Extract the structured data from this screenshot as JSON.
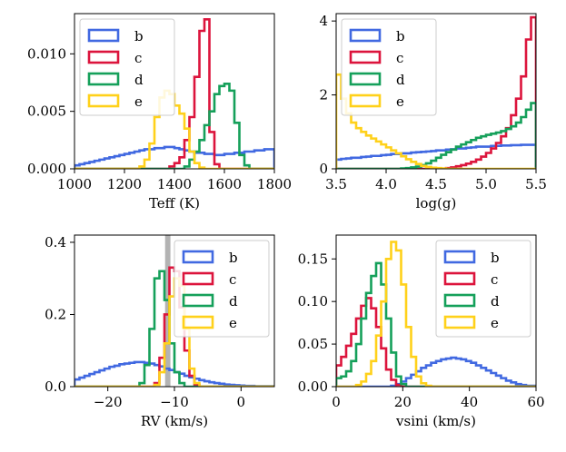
{
  "chart_data": [
    {
      "type": "histogram",
      "xlabel": "Teff (K)",
      "ylabel": "",
      "xlim": [
        1000,
        1800
      ],
      "ylim": [
        0,
        0.0135
      ],
      "xticks": [
        "1000",
        "1200",
        "1400",
        "1600",
        "1800"
      ],
      "yticks": [
        "0.000",
        "0.005",
        "0.010"
      ],
      "legend_position": "top-left",
      "bin_start": 1000,
      "bin_width": 20,
      "series": [
        {
          "name": "b",
          "color": "#4169E1",
          "values": [
            0.0003,
            0.0004,
            0.0005,
            0.0006,
            0.0007,
            0.0008,
            0.0009,
            0.001,
            0.0011,
            0.0012,
            0.0013,
            0.0014,
            0.0015,
            0.0016,
            0.0017,
            0.0017,
            0.0018,
            0.0018,
            0.0019,
            0.0019,
            0.0018,
            0.0017,
            0.0016,
            0.0015,
            0.0014,
            0.0014,
            0.0013,
            0.0013,
            0.0012,
            0.0012,
            0.0013,
            0.0013,
            0.0014,
            0.0014,
            0.0015,
            0.0015,
            0.0016,
            0.0016,
            0.0017,
            0.0017
          ]
        },
        {
          "name": "c",
          "color": "#DC143C",
          "values": [
            0,
            0,
            0,
            0,
            0,
            0,
            0,
            0,
            0,
            0,
            0,
            0,
            0,
            0,
            0,
            0,
            0,
            0,
            0,
            0.0002,
            0.0005,
            0.001,
            0.0025,
            0.0045,
            0.008,
            0.012,
            0.013,
            0.0032,
            0.0004,
            0,
            0,
            0,
            0,
            0,
            0,
            0,
            0,
            0,
            0,
            0
          ]
        },
        {
          "name": "d",
          "color": "#15A05A",
          "values": [
            0,
            0,
            0,
            0,
            0,
            0,
            0,
            0,
            0,
            0,
            0,
            0,
            0,
            0,
            0,
            0,
            0,
            0,
            0,
            0,
            0,
            0,
            0.0002,
            0.0008,
            0.0015,
            0.0025,
            0.0038,
            0.005,
            0.0065,
            0.0072,
            0.0074,
            0.0068,
            0.004,
            0.0012,
            0.0003,
            0,
            0,
            0,
            0,
            0
          ]
        },
        {
          "name": "e",
          "color": "#FFD11A",
          "values": [
            0,
            0,
            0,
            0,
            0,
            0,
            0,
            0,
            0,
            0,
            0,
            0,
            0,
            0.0002,
            0.0008,
            0.0022,
            0.0045,
            0.0062,
            0.0068,
            0.0065,
            0.0055,
            0.0048,
            0.0035,
            0.0015,
            0.0005,
            0.0001,
            0,
            0,
            0,
            0,
            0,
            0,
            0,
            0,
            0,
            0,
            0,
            0,
            0,
            0
          ]
        }
      ]
    },
    {
      "type": "histogram",
      "xlabel": "log(g)",
      "ylabel": "",
      "xlim": [
        3.5,
        5.5
      ],
      "ylim": [
        0,
        4.2
      ],
      "xticks": [
        "3.5",
        "4.0",
        "4.5",
        "5.0",
        "5.5"
      ],
      "yticks": [
        "0",
        "2",
        "4"
      ],
      "legend_position": "top-left",
      "bin_start": 3.5,
      "bin_width": 0.05,
      "series": [
        {
          "name": "b",
          "color": "#4169E1",
          "values": [
            0.25,
            0.27,
            0.28,
            0.3,
            0.3,
            0.32,
            0.33,
            0.35,
            0.35,
            0.37,
            0.38,
            0.4,
            0.4,
            0.42,
            0.42,
            0.44,
            0.45,
            0.46,
            0.47,
            0.48,
            0.5,
            0.5,
            0.52,
            0.53,
            0.55,
            0.55,
            0.57,
            0.58,
            0.6,
            0.6,
            0.6,
            0.62,
            0.62,
            0.63,
            0.63,
            0.64,
            0.64,
            0.65,
            0.65,
            0.65
          ]
        },
        {
          "name": "c",
          "color": "#DC143C",
          "values": [
            0,
            0,
            0,
            0,
            0,
            0,
            0,
            0,
            0,
            0,
            0,
            0,
            0,
            0,
            0,
            0,
            0,
            0,
            0,
            0,
            0,
            0,
            0.02,
            0.04,
            0.07,
            0.1,
            0.14,
            0.19,
            0.25,
            0.33,
            0.43,
            0.55,
            0.7,
            0.88,
            1.1,
            1.45,
            1.9,
            2.5,
            3.5,
            4.1
          ]
        },
        {
          "name": "d",
          "color": "#15A05A",
          "values": [
            0,
            0,
            0,
            0,
            0,
            0,
            0,
            0,
            0,
            0,
            0,
            0,
            0,
            0.01,
            0.02,
            0.04,
            0.06,
            0.1,
            0.15,
            0.22,
            0.3,
            0.38,
            0.45,
            0.52,
            0.6,
            0.66,
            0.72,
            0.78,
            0.84,
            0.88,
            0.92,
            0.95,
            0.98,
            1.02,
            1.08,
            1.15,
            1.25,
            1.4,
            1.6,
            1.78
          ]
        },
        {
          "name": "e",
          "color": "#FFD11A",
          "values": [
            2.55,
            1.9,
            1.5,
            1.25,
            1.1,
            1.0,
            0.9,
            0.82,
            0.74,
            0.66,
            0.58,
            0.5,
            0.42,
            0.34,
            0.26,
            0.19,
            0.13,
            0.08,
            0.05,
            0.03,
            0.02,
            0.01,
            0,
            0,
            0,
            0,
            0,
            0,
            0,
            0,
            0,
            0,
            0,
            0,
            0,
            0,
            0,
            0,
            0,
            0
          ]
        }
      ]
    },
    {
      "type": "histogram",
      "xlabel": "RV (km/s)",
      "ylabel": "",
      "xlim": [
        -25,
        5
      ],
      "ylim": [
        0,
        0.42
      ],
      "xticks": [
        "−20",
        "−10",
        "0"
      ],
      "xtick_values": [
        -20,
        -10,
        0
      ],
      "yticks": [
        "0.0",
        "0.2",
        "0.4"
      ],
      "legend_position": "top-right",
      "shaded_band": [
        -11.4,
        -10.6
      ],
      "bin_start": -25,
      "bin_width": 0.75,
      "series": [
        {
          "name": "b",
          "color": "#4169E1",
          "values": [
            0.02,
            0.025,
            0.03,
            0.035,
            0.04,
            0.045,
            0.05,
            0.055,
            0.058,
            0.062,
            0.064,
            0.066,
            0.068,
            0.068,
            0.066,
            0.064,
            0.06,
            0.056,
            0.05,
            0.046,
            0.04,
            0.036,
            0.03,
            0.026,
            0.022,
            0.018,
            0.015,
            0.012,
            0.01,
            0.008,
            0.006,
            0.005,
            0.004,
            0.003,
            0.002,
            0.002,
            0.001,
            0.001,
            0.001,
            0.001
          ]
        },
        {
          "name": "c",
          "color": "#DC143C",
          "values": [
            0,
            0,
            0,
            0,
            0,
            0,
            0,
            0,
            0,
            0,
            0,
            0,
            0,
            0,
            0,
            0,
            0.01,
            0.08,
            0.2,
            0.33,
            0.32,
            0.22,
            0.1,
            0.03,
            0.005,
            0,
            0,
            0,
            0,
            0,
            0,
            0,
            0,
            0,
            0,
            0,
            0,
            0,
            0,
            0
          ]
        },
        {
          "name": "d",
          "color": "#15A05A",
          "values": [
            0,
            0,
            0,
            0,
            0,
            0,
            0,
            0,
            0,
            0,
            0,
            0,
            0,
            0.01,
            0.06,
            0.16,
            0.3,
            0.32,
            0.24,
            0.12,
            0.04,
            0.01,
            0,
            0,
            0,
            0,
            0,
            0,
            0,
            0,
            0,
            0,
            0,
            0,
            0,
            0,
            0,
            0,
            0,
            0
          ]
        },
        {
          "name": "e",
          "color": "#FFD11A",
          "values": [
            0,
            0,
            0,
            0,
            0,
            0,
            0,
            0,
            0,
            0,
            0,
            0,
            0,
            0,
            0,
            0,
            0.005,
            0.04,
            0.12,
            0.25,
            0.3,
            0.28,
            0.16,
            0.05,
            0.01,
            0,
            0,
            0,
            0,
            0,
            0,
            0,
            0,
            0,
            0,
            0,
            0,
            0,
            0,
            0
          ]
        }
      ]
    },
    {
      "type": "histogram",
      "xlabel": "vsini (km/s)",
      "ylabel": "",
      "xlim": [
        0,
        60
      ],
      "ylim": [
        0,
        0.178
      ],
      "xticks": [
        "0",
        "20",
        "40",
        "60"
      ],
      "xtick_values": [
        0,
        20,
        40,
        60
      ],
      "yticks": [
        "0.00",
        "0.05",
        "0.10",
        "0.15"
      ],
      "legend_position": "top-right",
      "bin_start": 0,
      "bin_width": 1.5,
      "series": [
        {
          "name": "b",
          "color": "#4169E1",
          "values": [
            0,
            0,
            0,
            0,
            0,
            0,
            0,
            0,
            0,
            0,
            0,
            0.001,
            0.003,
            0.006,
            0.01,
            0.014,
            0.018,
            0.022,
            0.025,
            0.028,
            0.03,
            0.032,
            0.033,
            0.034,
            0.033,
            0.032,
            0.03,
            0.028,
            0.025,
            0.022,
            0.019,
            0.016,
            0.013,
            0.01,
            0.007,
            0.005,
            0.003,
            0.002,
            0.001,
            0.001
          ]
        },
        {
          "name": "c",
          "color": "#DC143C",
          "values": [
            0.025,
            0.035,
            0.048,
            0.062,
            0.08,
            0.095,
            0.104,
            0.092,
            0.07,
            0.045,
            0.02,
            0.008,
            0.002,
            0,
            0,
            0,
            0,
            0,
            0,
            0,
            0,
            0,
            0,
            0,
            0,
            0,
            0,
            0,
            0,
            0,
            0,
            0,
            0,
            0,
            0,
            0,
            0,
            0,
            0,
            0
          ]
        },
        {
          "name": "d",
          "color": "#15A05A",
          "values": [
            0.01,
            0.012,
            0.018,
            0.03,
            0.05,
            0.08,
            0.11,
            0.13,
            0.145,
            0.12,
            0.08,
            0.04,
            0.012,
            0.003,
            0,
            0,
            0,
            0,
            0,
            0,
            0,
            0,
            0,
            0,
            0,
            0,
            0,
            0,
            0,
            0,
            0,
            0,
            0,
            0,
            0,
            0,
            0,
            0,
            0,
            0
          ]
        },
        {
          "name": "e",
          "color": "#FFD11A",
          "values": [
            0,
            0,
            0,
            0,
            0.002,
            0.006,
            0.015,
            0.03,
            0.06,
            0.1,
            0.15,
            0.17,
            0.16,
            0.12,
            0.07,
            0.035,
            0.012,
            0.004,
            0.001,
            0,
            0,
            0,
            0,
            0,
            0,
            0,
            0,
            0,
            0,
            0,
            0,
            0,
            0,
            0,
            0,
            0,
            0,
            0,
            0,
            0
          ]
        }
      ]
    }
  ]
}
